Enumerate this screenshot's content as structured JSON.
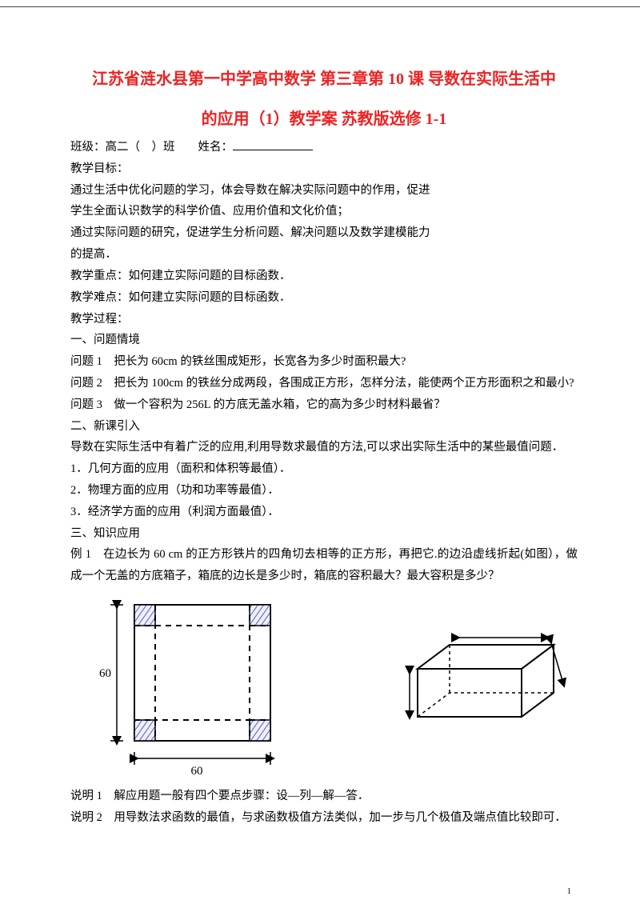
{
  "colors": {
    "title": "#ee2222",
    "text": "#000000",
    "bg": "#ffffff",
    "rule": "#444444"
  },
  "typography": {
    "title_fontsize": 20,
    "body_fontsize": 14.5,
    "line_height": 1.85,
    "family": "SimSun"
  },
  "title": {
    "line1": "江苏省涟水县第一中学高中数学 第三章第 10 课 导数在实际生活中",
    "line2": "的应用（1）教学案 苏教版选修 1-1"
  },
  "class_line": {
    "prefix": "班级：高二（　）班　　姓名："
  },
  "lines": [
    "教学目标：",
    "通过生活中优化问题的学习，体会导数在解决实际问题中的作用，促进",
    "学生全面认识数学的科学价值、应用价值和文化价值；",
    "通过实际问题的研究，促进学生分析问题、解决问题以及数学建模能力",
    "的提高．",
    "教学重点：如何建立实际问题的目标函数．",
    "教学难点：如何建立实际问题的目标函数．",
    "教学过程：",
    "一、问题情境",
    "问题 1　把长为 60cm 的铁丝围成矩形，长宽各为多少时面积最大?",
    "问题 2　把长为 100cm 的铁丝分成两段，各围成正方形，怎样分法，能使两个正方形面积之和最小?",
    "问题 3　做一个容积为 256L 的方底无盖水箱，它的高为多少时材料最省？",
    "二、新课引入",
    "导数在实际生活中有着广泛的应用,利用导数求最值的方法,可以求出实际生活中的某些最值问题．",
    "1．几何方面的应用（面积和体积等最值）．",
    "2．物理方面的应用（功和功率等最值）．",
    "3．经济学方面的应用（利润方面最值）．",
    "三、知识应用",
    "例 1　在边长为 60 cm 的正方形铁片的四角切去相等的正方形，再把它.的边沿虚线折起(如图），做成一个无盖的方底箱子，箱底的边长是多少时，箱底的容积最大？最大容积是多少？"
  ],
  "fig_left": {
    "outer": 60,
    "dim_label": "60",
    "stroke": "#000000",
    "dash": "6,5",
    "hatch_color": "#ccccee",
    "hatch_stroke": "#5558aa"
  },
  "fig_right": {
    "stroke": "#000000",
    "arrow": "#000000"
  },
  "notes": [
    "说明 1　解应用题一般有四个要点步骤：设—列—解—答．",
    "说明 2　用导数法求函数的最值，与求函数极值方法类似，加一步与几个极值及端点值比较即可．"
  ],
  "page_number": "1"
}
